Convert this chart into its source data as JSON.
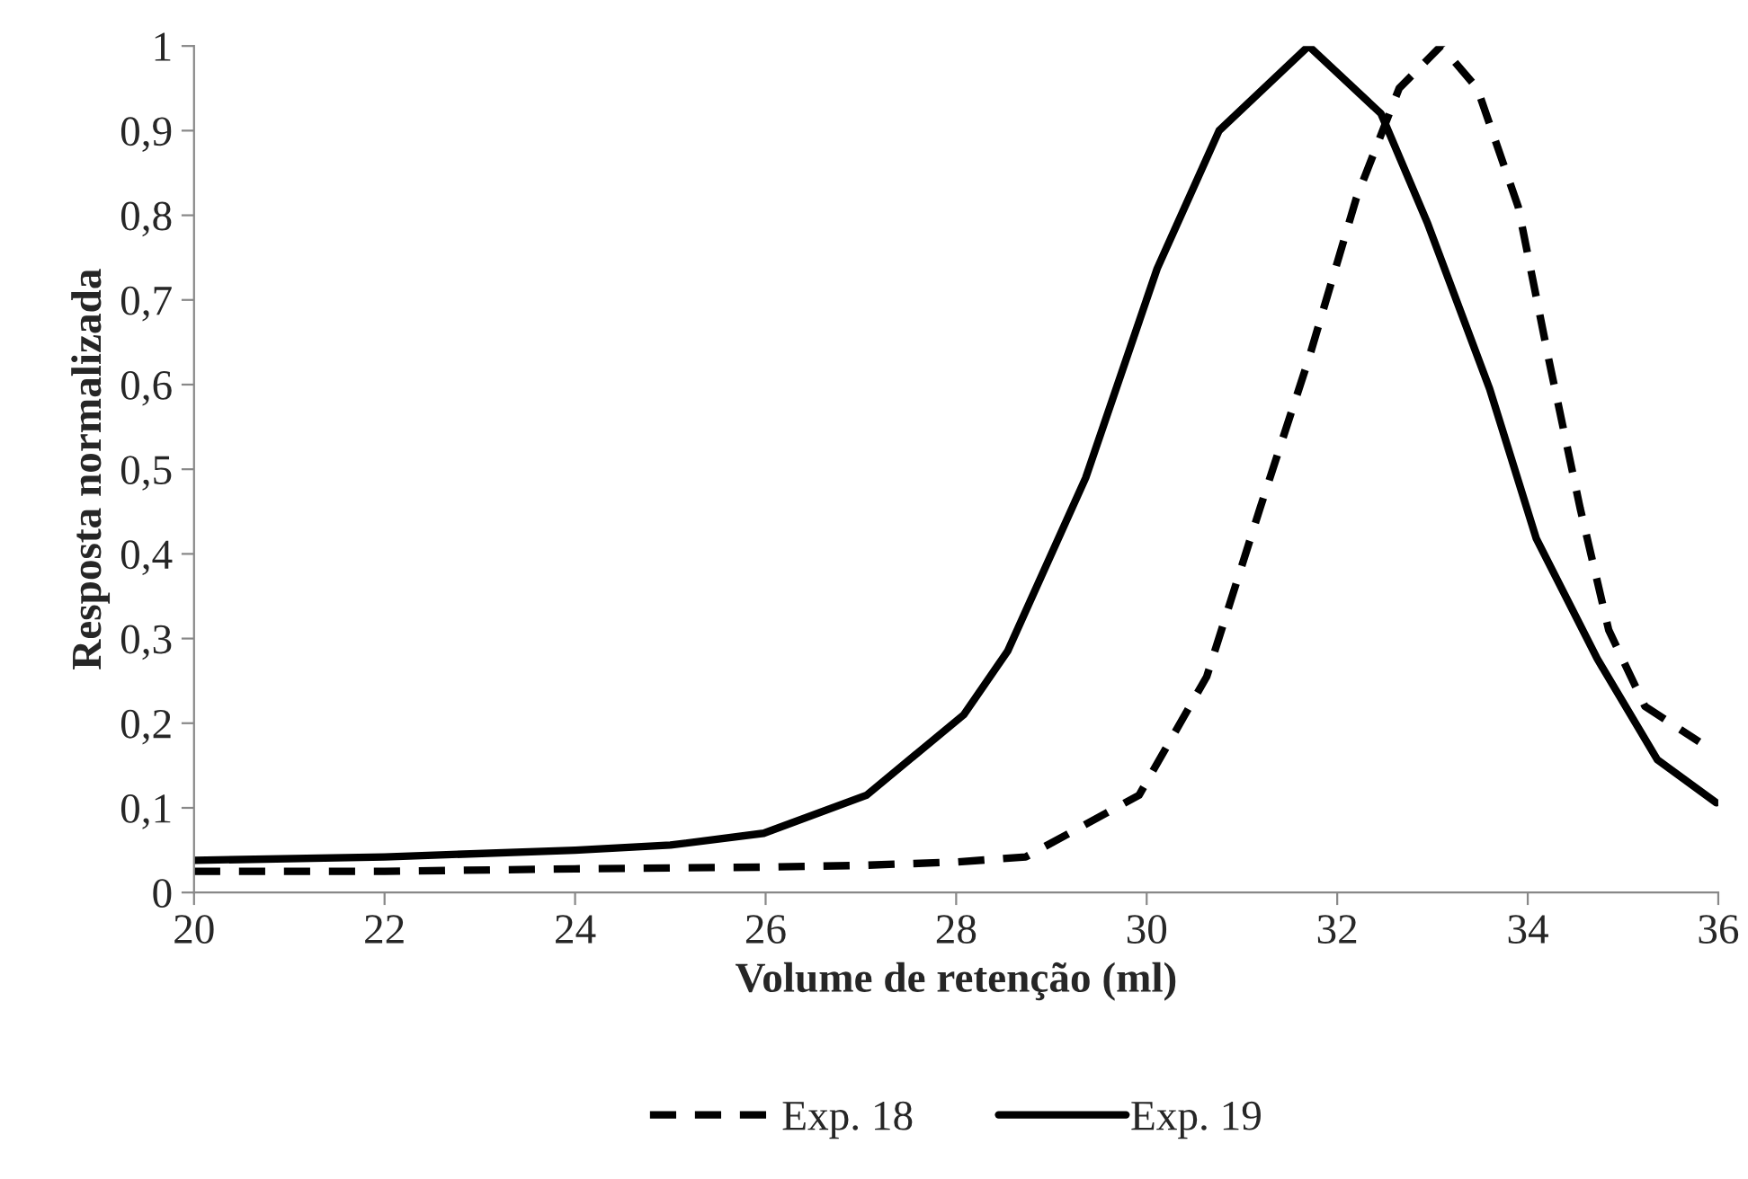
{
  "chart_data": {
    "type": "line",
    "xlabel": "Volume de retenção (ml)",
    "ylabel": "Resposta normalizada",
    "xlim": [
      20,
      36
    ],
    "xticks": [
      20,
      22,
      24,
      26,
      28,
      30,
      32,
      34,
      36
    ],
    "ylim": [
      0,
      1
    ],
    "yticks": [
      0,
      {
        "value": 0.1,
        "label": "0,1"
      },
      {
        "value": 0.2,
        "label": "0,2"
      },
      {
        "value": 0.3,
        "label": "0,3"
      },
      {
        "value": 0.4,
        "label": "0,4"
      },
      {
        "value": 0.5,
        "label": "0,5"
      },
      {
        "value": 0.6,
        "label": "0,6"
      },
      {
        "value": 0.7,
        "label": "0,7"
      },
      {
        "value": 0.8,
        "label": "0,8"
      },
      {
        "value": 0.9,
        "label": "0,9"
      },
      1
    ],
    "grid": false,
    "legend": "bottom",
    "marker": "none",
    "series": [
      {
        "name": "Exp. 18",
        "color": "#000000",
        "line_style": "dashed",
        "x": [
          20,
          22,
          24,
          26,
          27,
          28,
          28.73,
          29.92,
          30.63,
          31.19,
          31.7,
          32.2,
          32.65,
          33.09,
          33.47,
          33.9,
          34.22,
          34.55,
          34.85,
          35.23,
          35.8
        ],
        "values": [
          0.025,
          0.025,
          0.028,
          0.03,
          0.032,
          0.036,
          0.042,
          0.115,
          0.255,
          0.454,
          0.63,
          0.82,
          0.95,
          1.0,
          0.95,
          0.81,
          0.63,
          0.454,
          0.31,
          0.22,
          0.178
        ]
      },
      {
        "name": "Exp. 19",
        "color": "#000000",
        "line_style": "solid",
        "x": [
          20,
          22,
          24,
          25,
          25.98,
          27.06,
          28.08,
          28.54,
          29.36,
          30.11,
          30.76,
          31.7,
          32.46,
          32.95,
          33.6,
          34.09,
          34.73,
          35.36,
          35.98
        ],
        "values": [
          0.038,
          0.042,
          0.05,
          0.056,
          0.07,
          0.115,
          0.21,
          0.285,
          0.49,
          0.737,
          0.9,
          1.0,
          0.92,
          0.79,
          0.595,
          0.418,
          0.276,
          0.157,
          0.106
        ]
      }
    ]
  }
}
